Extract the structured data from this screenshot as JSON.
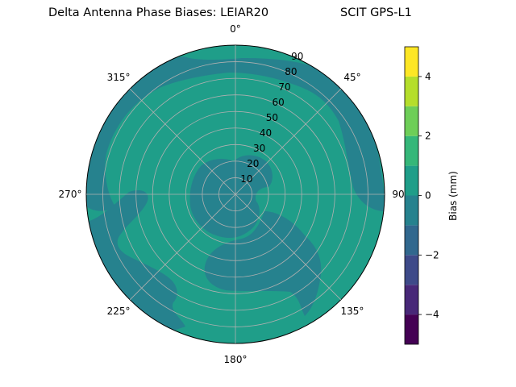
{
  "chart_data": {
    "type": "polar-contour",
    "title": "Delta Antenna Phase Biases: LEIAR20",
    "subtitle": "SCIT GPS-L1",
    "azimuth_ticks": [
      "0°",
      "45°",
      "90°",
      "135°",
      "180°",
      "225°",
      "270°",
      "315°"
    ],
    "azimuth_tick_values": [
      0,
      45,
      90,
      135,
      180,
      225,
      270,
      315
    ],
    "radial_ticks": [
      "10",
      "20",
      "30",
      "40",
      "50",
      "60",
      "70",
      "80",
      "90"
    ],
    "radial_tick_values": [
      10,
      20,
      30,
      40,
      50,
      60,
      70,
      80,
      90
    ],
    "radial_range": [
      0,
      90
    ],
    "grid": true,
    "colorbar": {
      "label": "Bias (mm)",
      "range": [
        -5,
        5
      ],
      "levels": [
        -5,
        -4,
        -3,
        -2,
        -1,
        0,
        1,
        2,
        3,
        4,
        5
      ],
      "tick_values": [
        -4,
        -2,
        0,
        2,
        4
      ],
      "tick_labels": [
        "−4",
        "−2",
        "0",
        "2",
        "4"
      ],
      "colors": [
        "#440154",
        "#482878",
        "#3e4a89",
        "#31688e",
        "#26828e",
        "#1f9e89",
        "#35b779",
        "#6ece58",
        "#b5de2b",
        "#fde725"
      ]
    },
    "regions": [
      {
        "bias_range": [
          0,
          1
        ],
        "color": "#1f9e89",
        "note": "background"
      },
      {
        "bias_range": [
          -1,
          0
        ],
        "color": "#26828e",
        "area": "outer ring NW to SE"
      },
      {
        "bias_range": [
          -1,
          0
        ],
        "color": "#26828e",
        "area": "inner rings SW and NE"
      },
      {
        "bias_range": [
          -1,
          0
        ],
        "color": "#26828e",
        "area": "south-east lobe"
      },
      {
        "bias_range": [
          -1,
          0
        ],
        "color": "#26828e",
        "area": "west edge"
      }
    ]
  }
}
